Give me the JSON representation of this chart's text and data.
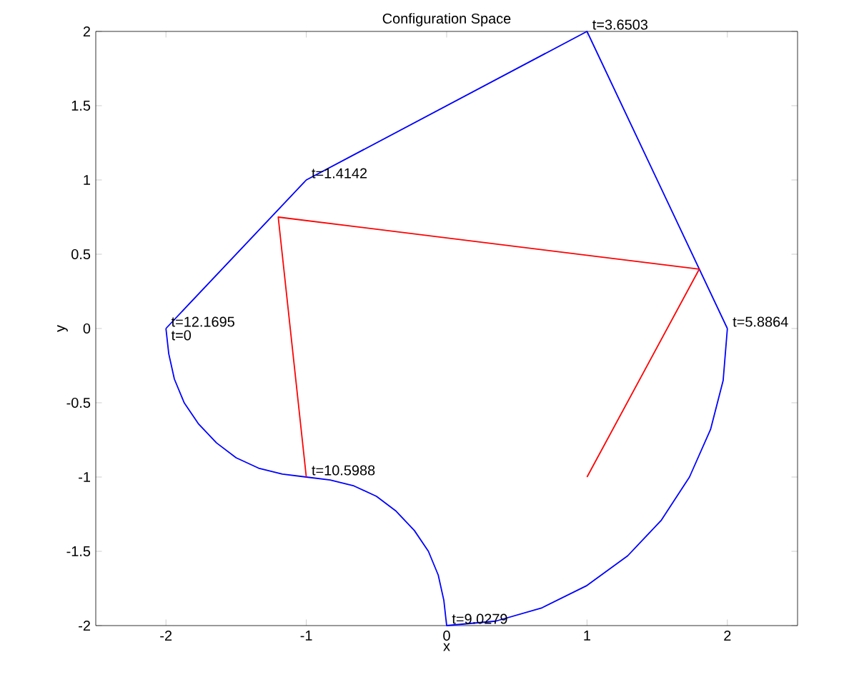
{
  "chart_data": {
    "type": "line",
    "title": "Configuration Space",
    "xlabel": "x",
    "ylabel": "y",
    "xlim": [
      -2.5,
      2.5
    ],
    "ylim": [
      -2,
      2
    ],
    "xticks": [
      -2,
      -1,
      0,
      1,
      2
    ],
    "yticks": [
      -2,
      -1.5,
      -1,
      -0.5,
      0,
      0.5,
      1,
      1.5,
      2
    ],
    "grid": false,
    "marker": "none",
    "line_style": "solid",
    "series": [
      {
        "color": "#0000ff",
        "x": [
          -2,
          -1,
          1,
          2
        ],
        "values": [
          0,
          1,
          2,
          0
        ]
      },
      {
        "color": "#0000ff",
        "x": [
          2,
          1.97,
          1.88,
          1.73,
          1.53,
          1.29,
          1,
          0.68,
          0.35,
          0,
          -0.02,
          -0.06,
          -0.13,
          -0.23,
          -0.36,
          -0.5,
          -0.66,
          -0.83,
          -1,
          -1.17,
          -1.34,
          -1.5,
          -1.64,
          -1.77,
          -1.87,
          -1.94,
          -1.98,
          -2
        ],
        "values": [
          0,
          -0.35,
          -0.68,
          -1,
          -1.29,
          -1.53,
          -1.73,
          -1.88,
          -1.97,
          -2,
          -1.83,
          -1.66,
          -1.5,
          -1.36,
          -1.23,
          -1.13,
          -1.06,
          -1.02,
          -1,
          -0.98,
          -0.94,
          -0.87,
          -0.77,
          -0.64,
          -0.5,
          -0.34,
          -0.17,
          0
        ]
      },
      {
        "color": "#ff0000",
        "x": [
          -1,
          -1.2,
          1.8,
          1
        ],
        "values": [
          -1,
          0.75,
          0.4,
          -1
        ]
      }
    ],
    "annotations": [
      {
        "text": "t=1.4142",
        "x": -1,
        "y": 1
      },
      {
        "text": "t=3.6503",
        "x": 1,
        "y": 2
      },
      {
        "text": "t=5.8864",
        "x": 2,
        "y": 0
      },
      {
        "text": "t=9.0279",
        "x": 0,
        "y": -2
      },
      {
        "text": "t=10.5988",
        "x": -1,
        "y": -1
      },
      {
        "text": "t=12.1695",
        "x": -2,
        "y": 0
      },
      {
        "text": "t=0",
        "x": -2,
        "y": 0
      }
    ]
  }
}
